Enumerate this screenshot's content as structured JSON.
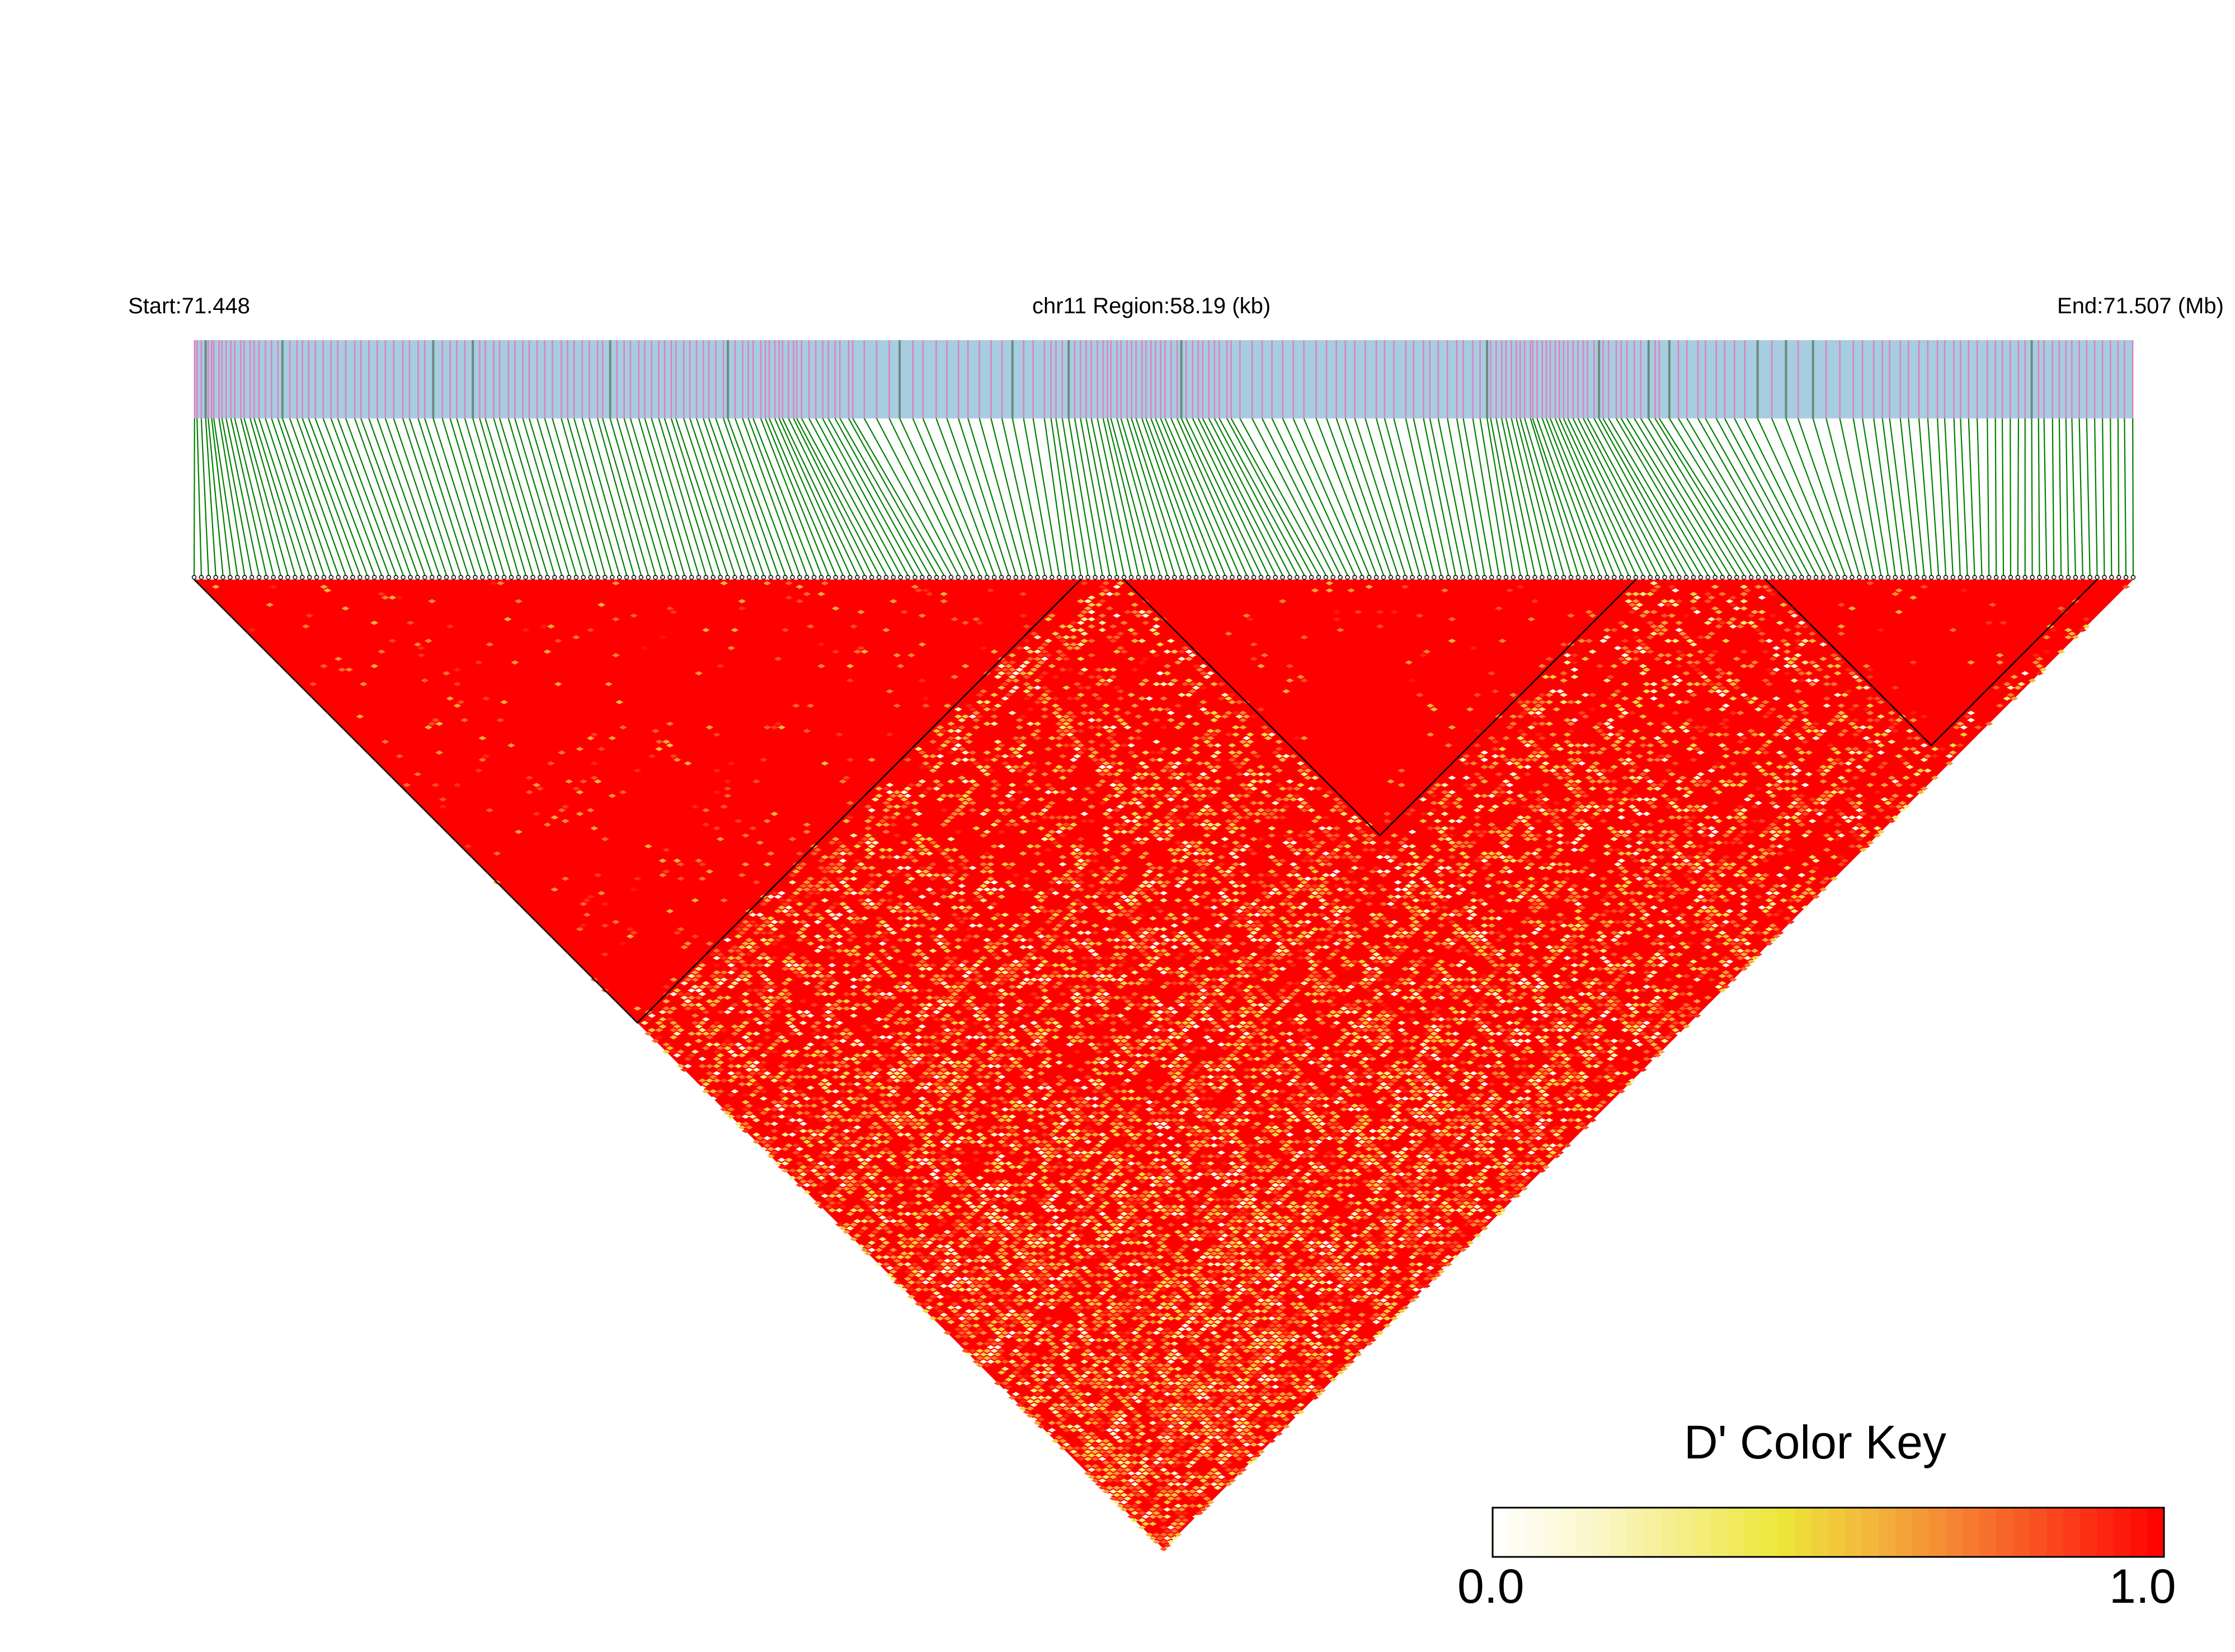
{
  "header": {
    "start_label": "Start:71.448",
    "region_label": "chr11 Region:58.19 (kb)",
    "end_label": "End:71.507 (Mb)"
  },
  "colors": {
    "track_bg": "#a6cde0",
    "snp_mark": "#e17fc1",
    "snp_mark_dark": "#6e8a7e",
    "connector": "#008000",
    "ld_high": "#ff0000",
    "ld_mid": "#f4e946",
    "ld_low": "#ffffff",
    "block_outline": "#000000"
  },
  "color_key": {
    "title": "D' Color Key",
    "min_label": "0.0",
    "max_label": "1.0",
    "stops": [
      "#ffffff",
      "#fbf7cf",
      "#f5ee86",
      "#ede73a",
      "#f3b43c",
      "#f67a30",
      "#fb3d1a",
      "#ff0000"
    ]
  },
  "chart_data": {
    "type": "heatmap",
    "title": "",
    "chromosome": "chr11",
    "region_start_mb": 71.448,
    "region_end_mb": 71.507,
    "region_length_kb": 58.19,
    "value_name": "D'",
    "value_range": [
      0.0,
      1.0
    ],
    "n_snps": 270,
    "snp_positions_mb": [
      71.448,
      71.4489,
      71.4502,
      71.4519,
      71.454,
      71.4561,
      71.458,
      71.46,
      71.4618,
      71.4635,
      71.4652,
      71.4664,
      71.4681,
      71.4712,
      71.474,
      71.4755,
      71.4768,
      71.4781,
      71.4796,
      71.4824,
      71.485,
      71.4872,
      71.4885,
      71.4896,
      71.4909,
      71.4926,
      71.495,
      71.4986,
      71.501,
      71.5032,
      71.505,
      71.507
    ],
    "ld_blocks": [
      {
        "first_snp": 1,
        "last_snp": 124
      },
      {
        "first_snp": 130,
        "last_snp": 201
      },
      {
        "first_snp": 219,
        "last_snp": 265
      }
    ],
    "pattern_note": ""
  }
}
